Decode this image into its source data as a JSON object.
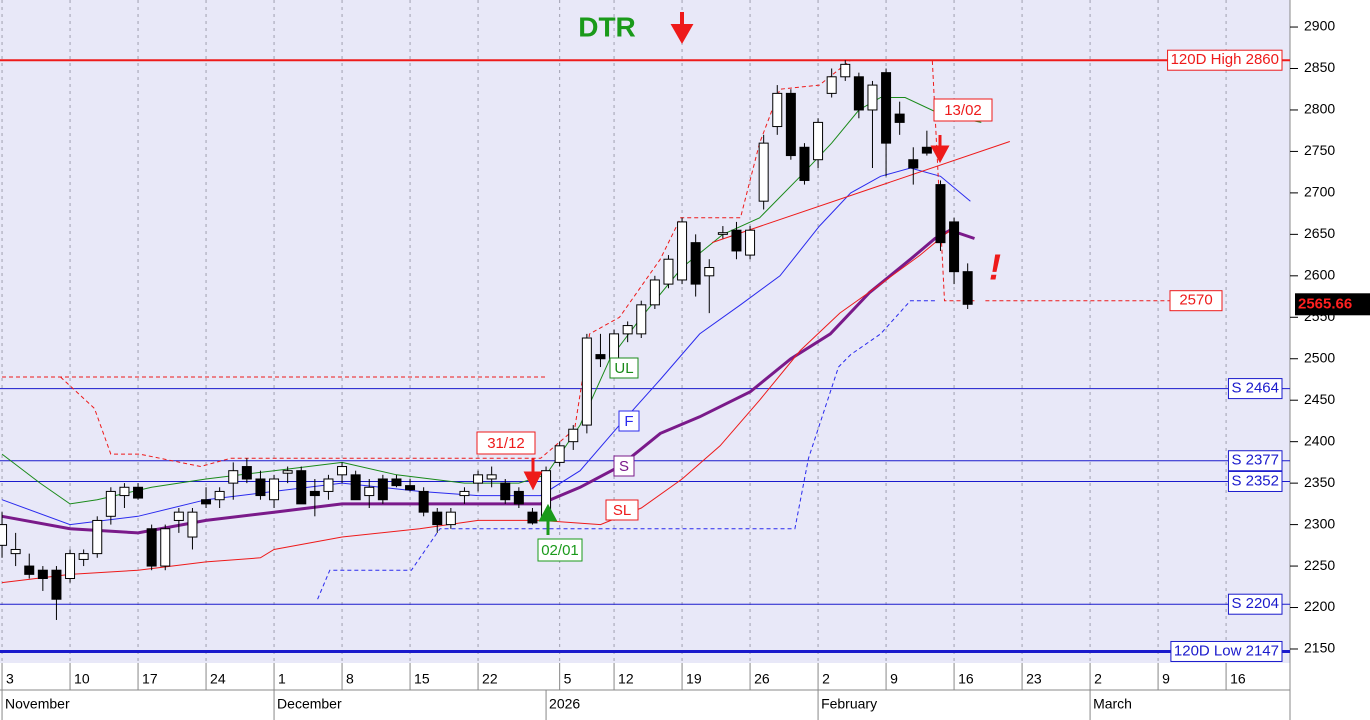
{
  "chart_data": {
    "type": "candlestick",
    "x": [
      0,
      1,
      2,
      3,
      4,
      5,
      6,
      7,
      8,
      9,
      10,
      11,
      12,
      13,
      14,
      15,
      16,
      17,
      18,
      19,
      20,
      21,
      22,
      23,
      24,
      25,
      26,
      27,
      28,
      29,
      30,
      31,
      32,
      33,
      34,
      35,
      36,
      37,
      38,
      39,
      40,
      41,
      42,
      43,
      44,
      45,
      46,
      47,
      48,
      49,
      50,
      51,
      52,
      53,
      54,
      55,
      56,
      57,
      58,
      59,
      60,
      61,
      62,
      63,
      64,
      65,
      66,
      67,
      68,
      69,
      70,
      71
    ],
    "open": [
      2275,
      2265,
      2250,
      2245,
      2245,
      2235,
      2258,
      2265,
      2310,
      2335,
      2345,
      2295,
      2250,
      2305,
      2285,
      2330,
      2330,
      2350,
      2370,
      2355,
      2330,
      2362,
      2365,
      2340,
      2340,
      2360,
      2360,
      2335,
      2355,
      2355,
      2347,
      2340,
      2315,
      2300,
      2335,
      2350,
      2355,
      2350,
      2340,
      2315,
      2310,
      2375,
      2400,
      2420,
      2505,
      2500,
      2530,
      2530,
      2565,
      2590,
      2595,
      2640,
      2600,
      2650,
      2655,
      2625,
      2690,
      2780,
      2820,
      2755,
      2740,
      2820,
      2840,
      2840,
      2800,
      2845,
      2795,
      2740,
      2755,
      2710,
      2665,
      2605
    ],
    "high": [
      2315,
      2290,
      2265,
      2250,
      2250,
      2270,
      2270,
      2310,
      2345,
      2350,
      2350,
      2300,
      2300,
      2320,
      2320,
      2345,
      2345,
      2375,
      2380,
      2365,
      2360,
      2370,
      2370,
      2355,
      2360,
      2375,
      2365,
      2355,
      2360,
      2360,
      2355,
      2345,
      2320,
      2320,
      2345,
      2365,
      2370,
      2355,
      2345,
      2320,
      2370,
      2400,
      2420,
      2530,
      2530,
      2535,
      2545,
      2570,
      2600,
      2625,
      2670,
      2650,
      2620,
      2660,
      2665,
      2660,
      2770,
      2830,
      2825,
      2760,
      2790,
      2850,
      2860,
      2845,
      2835,
      2850,
      2810,
      2755,
      2775,
      2715,
      2670,
      2615
    ],
    "low": [
      2260,
      2250,
      2235,
      2220,
      2185,
      2230,
      2250,
      2260,
      2300,
      2320,
      2330,
      2245,
      2245,
      2290,
      2270,
      2320,
      2320,
      2330,
      2350,
      2330,
      2320,
      2350,
      2325,
      2310,
      2330,
      2350,
      2330,
      2320,
      2325,
      2345,
      2340,
      2310,
      2290,
      2295,
      2325,
      2340,
      2345,
      2325,
      2320,
      2300,
      2305,
      2370,
      2390,
      2410,
      2490,
      2495,
      2520,
      2525,
      2560,
      2585,
      2590,
      2575,
      2555,
      2645,
      2620,
      2620,
      2680,
      2770,
      2740,
      2710,
      2730,
      2815,
      2835,
      2790,
      2730,
      2720,
      2770,
      2710,
      2745,
      2630,
      2590,
      2560
    ],
    "close": [
      2300,
      2270,
      2240,
      2235,
      2210,
      2265,
      2265,
      2305,
      2340,
      2345,
      2332,
      2250,
      2295,
      2315,
      2315,
      2325,
      2340,
      2365,
      2355,
      2335,
      2355,
      2365,
      2325,
      2335,
      2355,
      2370,
      2330,
      2345,
      2330,
      2347,
      2342,
      2315,
      2300,
      2315,
      2340,
      2360,
      2360,
      2330,
      2325,
      2302,
      2365,
      2395,
      2415,
      2525,
      2500,
      2530,
      2540,
      2565,
      2595,
      2620,
      2665,
      2590,
      2610,
      2652,
      2630,
      2655,
      2760,
      2820,
      2745,
      2715,
      2785,
      2840,
      2855,
      2800,
      2830,
      2760,
      2785,
      2730,
      2748,
      2640,
      2605,
      2565.66
    ],
    "last": 2565.66,
    "series": [
      {
        "name": "UL",
        "color": "#1a8a1a",
        "width": 1,
        "x": [
          0,
          2.8,
          5,
          7,
          11,
          15,
          20,
          25,
          29,
          34,
          38,
          40,
          42.5,
          44.7,
          47,
          50,
          53,
          55.7,
          58.7,
          61,
          63,
          64.6,
          66.4,
          69,
          72
        ],
        "values": [
          2385,
          2350,
          2325,
          2330,
          2345,
          2355,
          2365,
          2375,
          2360,
          2350,
          2350,
          2360,
          2420,
          2500,
          2550,
          2610,
          2650,
          2670,
          2720,
          2760,
          2800,
          2815,
          2815,
          2795,
          2785
        ]
      },
      {
        "name": "F",
        "color": "#2a2aee",
        "width": 1,
        "x": [
          0,
          5,
          10,
          15,
          20,
          25,
          30.7,
          35,
          39.6,
          42.5,
          45.4,
          48.4,
          51.3,
          54.3,
          57.2,
          60.1,
          62.4,
          64.6,
          66.8,
          69,
          71.2
        ],
        "values": [
          2330,
          2300,
          2310,
          2330,
          2340,
          2350,
          2340,
          2335,
          2335,
          2365,
          2420,
          2475,
          2530,
          2565,
          2600,
          2660,
          2700,
          2720,
          2730,
          2720,
          2690
        ]
      },
      {
        "name": "S",
        "color": "#7a1a8a",
        "width": 3,
        "x": [
          0,
          5,
          10,
          15,
          20,
          25,
          30.7,
          35,
          39.6,
          42.5,
          45.4,
          48.4,
          51.3,
          55,
          58,
          60.9,
          63.8,
          66.8,
          68.6,
          69.7,
          71.5
        ],
        "values": [
          2310,
          2295,
          2290,
          2305,
          2315,
          2325,
          2325,
          2325,
          2325,
          2345,
          2370,
          2410,
          2430,
          2460,
          2500,
          2530,
          2580,
          2620,
          2645,
          2655,
          2645
        ]
      },
      {
        "name": "SL",
        "color": "#ee1a1a",
        "width": 1,
        "x": [
          0,
          5,
          10,
          15,
          19,
          20,
          25,
          30.7,
          35,
          39.6,
          44,
          47,
          50,
          52.8,
          55.7,
          58.7,
          61.6,
          64.6,
          67.5,
          69.7
        ],
        "values": [
          2230,
          2240,
          2245,
          2255,
          2260,
          2270,
          2285,
          2295,
          2305,
          2305,
          2300,
          2320,
          2355,
          2395,
          2450,
          2510,
          2555,
          2590,
          2625,
          2655
        ]
      },
      {
        "color": "#2a2aee",
        "width": 1,
        "dashed": true,
        "x": [
          23.2,
          24.1,
          30.1,
          32.2,
          58.3,
          59.3,
          61.5,
          62.4,
          64.6,
          66.8,
          68.6
        ],
        "values": [
          2210,
          2245,
          2245,
          2295,
          2295,
          2380,
          2490,
          2505,
          2530,
          2570,
          2570
        ]
      },
      {
        "color": "#ee1a1a",
        "width": 1,
        "dashed": true,
        "x": [
          4.3,
          6.8,
          8,
          10.1,
          14.6,
          16.8,
          39.6,
          42.1,
          43.2,
          45.4,
          48.4,
          49.9,
          54.3,
          55.7,
          57.2,
          60.1,
          62.4,
          68.4,
          69.3,
          71.5
        ],
        "values": [
          2478,
          2440,
          2385,
          2385,
          2370,
          2380,
          2380,
          2415,
          2530,
          2550,
          2620,
          2670,
          2670,
          2760,
          2825,
          2830,
          2860,
          2860,
          2570,
          2570
        ]
      },
      {
        "color": "#ee1a1a",
        "width": 1,
        "dashed": true,
        "x": [
          72.3,
          86
        ],
        "values": [
          2570,
          2570
        ]
      },
      {
        "color": "#ee1a1a",
        "width": 1,
        "dashed": true,
        "x": [
          0,
          40
        ],
        "values": [
          2478,
          2478
        ]
      },
      {
        "color": "#ee1a1a",
        "width": 1,
        "x": [
          52.2,
          74.1
        ],
        "values": [
          2640,
          2762
        ]
      }
    ],
    "levels": [
      {
        "value": 2860,
        "label": "120D High 2860",
        "color": "#ee1a1a",
        "width": 2
      },
      {
        "value": 2464,
        "label": "S 2464",
        "color": "#1a1acc",
        "width": 1
      },
      {
        "value": 2377,
        "label": "S 2377",
        "color": "#1a1acc",
        "width": 1
      },
      {
        "value": 2352,
        "label": "S 2352",
        "color": "#1a1acc",
        "width": 1
      },
      {
        "value": 2204,
        "label": "S 2204",
        "color": "#1a1acc",
        "width": 1
      },
      {
        "value": 2147,
        "label": "120D Low 2147",
        "color": "#1a1acc",
        "width": 3
      }
    ],
    "marker": {
      "value": 2570,
      "label": "2570"
    },
    "annotations": [
      "DTR",
      "13/02",
      "31/12",
      "02/01",
      "!"
    ],
    "xlim": [
      -0.15,
      94.7
    ],
    "ylim": [
      2133.1,
      2932.6
    ],
    "yticks": [
      2150,
      2200,
      2250,
      2300,
      2350,
      2400,
      2450,
      2500,
      2550,
      2600,
      2650,
      2700,
      2750,
      2800,
      2850,
      2900
    ],
    "xticks": [
      {
        "value": 0,
        "label": "3"
      },
      {
        "value": 5,
        "label": "10"
      },
      {
        "value": 10,
        "label": "17"
      },
      {
        "value": 15,
        "label": "24"
      },
      {
        "value": 20,
        "label": "1"
      },
      {
        "value": 25,
        "label": "8"
      },
      {
        "value": 30,
        "label": "15"
      },
      {
        "value": 35,
        "label": "22"
      },
      {
        "value": 41,
        "label": "5"
      },
      {
        "value": 45,
        "label": "12"
      },
      {
        "value": 50,
        "label": "19"
      },
      {
        "value": 55,
        "label": "26"
      },
      {
        "value": 60,
        "label": "2"
      },
      {
        "value": 65,
        "label": "9"
      },
      {
        "value": 70,
        "label": "16"
      },
      {
        "value": 75,
        "label": "23"
      },
      {
        "value": 80,
        "label": "2"
      },
      {
        "value": 85,
        "label": "9"
      },
      {
        "value": 90,
        "label": "16"
      }
    ],
    "months": [
      {
        "value": 0,
        "label": "November"
      },
      {
        "value": 20,
        "label": "December"
      },
      {
        "value": 40,
        "label": "2026"
      },
      {
        "value": 60,
        "label": "February"
      },
      {
        "value": 80,
        "label": "March"
      }
    ],
    "grid": true
  }
}
